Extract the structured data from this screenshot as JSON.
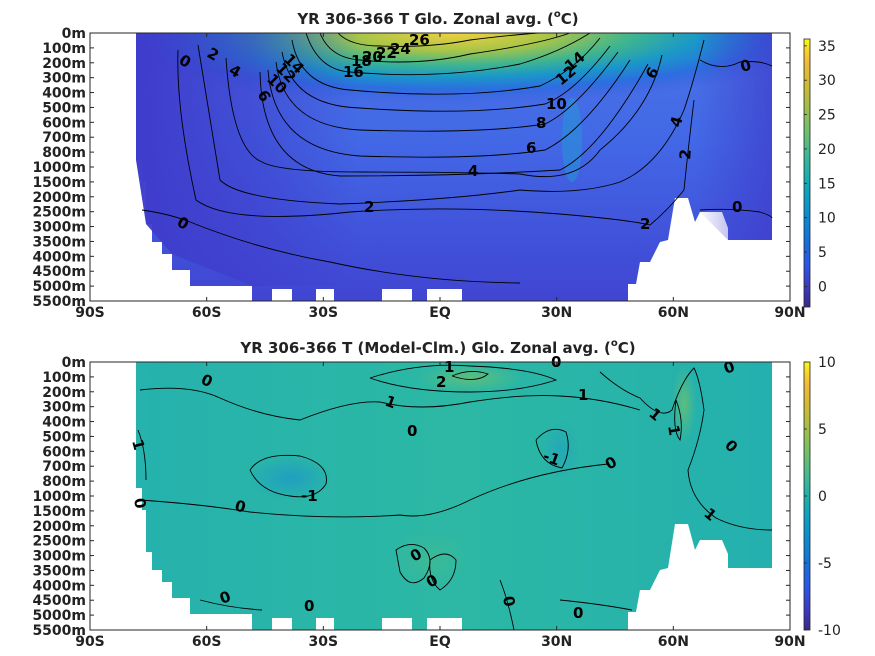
{
  "chart_data": [
    {
      "type": "heatmap",
      "title_main": "YR 306-366 T Glo. Zonal avg. (",
      "title_sup": "o",
      "title_unit": "C)",
      "x_ticks": [
        "90S",
        "60S",
        "30S",
        "EQ",
        "30N",
        "60N",
        "90N"
      ],
      "x_values": [
        -90,
        -60,
        -30,
        0,
        30,
        60,
        90
      ],
      "y_ticks": [
        "0m",
        "100m",
        "200m",
        "300m",
        "400m",
        "500m",
        "600m",
        "700m",
        "800m",
        "1000m",
        "1500m",
        "2000m",
        "2500m",
        "3000m",
        "3500m",
        "4000m",
        "4500m",
        "5000m",
        "5500m"
      ],
      "colorbar_ticks": [
        "35",
        "30",
        "25",
        "20",
        "15",
        "10",
        "5",
        "0"
      ],
      "colorbar_values": [
        35,
        30,
        25,
        20,
        15,
        10,
        5,
        0
      ],
      "colorbar_range": [
        -3,
        36
      ],
      "contour_labels": [
        "26",
        "24",
        "22",
        "20",
        "18",
        "16",
        "14",
        "12",
        "10",
        "8",
        "6",
        "4",
        "2",
        "0",
        "0",
        "0",
        "2",
        "4",
        "6",
        "14",
        "12",
        "6",
        "4",
        "2",
        "0",
        "2",
        "0",
        "10"
      ]
    },
    {
      "type": "heatmap",
      "title_main": "YR 306-366 T (Model-Clm.) Glo. Zonal avg. (",
      "title_sup": "o",
      "title_unit": "C)",
      "x_ticks": [
        "90S",
        "60S",
        "30S",
        "EQ",
        "30N",
        "60N",
        "90N"
      ],
      "x_values": [
        -90,
        -60,
        -30,
        0,
        30,
        60,
        90
      ],
      "y_ticks": [
        "0m",
        "100m",
        "200m",
        "300m",
        "400m",
        "500m",
        "600m",
        "700m",
        "800m",
        "1000m",
        "1500m",
        "2000m",
        "2500m",
        "3000m",
        "3500m",
        "4000m",
        "4500m",
        "5000m",
        "5500m"
      ],
      "colorbar_ticks": [
        "10",
        "5",
        "0",
        "-5",
        "-10"
      ],
      "colorbar_values": [
        10,
        5,
        0,
        -5,
        -10
      ],
      "colorbar_range": [
        -10,
        10
      ],
      "contour_labels": [
        "1",
        "2",
        "0",
        "0",
        "1",
        "1",
        "0",
        "-1",
        "-1",
        "0",
        "0",
        "0",
        "1",
        "1",
        "1",
        "1",
        "0",
        "0",
        "0",
        "0",
        "0",
        "0"
      ]
    }
  ],
  "colors": {
    "parula": [
      "#352a87",
      "#3f3cc9",
      "#1f5fe0",
      "#0f74d9",
      "#0a88d2",
      "#0e9bc3",
      "#1aaeae",
      "#41b992",
      "#6cc06c",
      "#9bbf4a",
      "#c6bd2f",
      "#ecb73d",
      "#fcd12c",
      "#f9fb0e"
    ]
  }
}
